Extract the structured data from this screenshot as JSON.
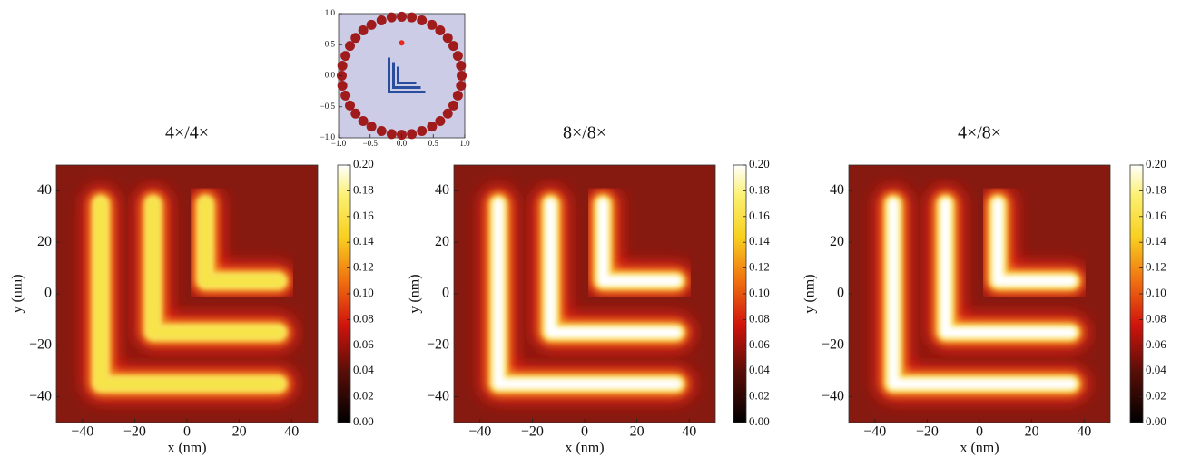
{
  "chart_data": [
    {
      "type": "scatter",
      "xlim": [
        -1,
        1
      ],
      "ylim": [
        -1,
        1
      ],
      "xticks": [
        {
          "value": -1,
          "label": "−1.0"
        },
        {
          "value": -0.5,
          "label": "−0.5"
        },
        {
          "value": 0,
          "label": "0.0"
        },
        {
          "value": 0.5,
          "label": "0.5"
        },
        {
          "value": 1,
          "label": "1.0"
        }
      ],
      "yticks": [
        {
          "value": -1,
          "label": "−1.0"
        },
        {
          "value": -0.5,
          "label": "−0.5"
        },
        {
          "value": 0,
          "label": "0.0"
        },
        {
          "value": 0.5,
          "label": "0.5"
        },
        {
          "value": 1,
          "label": "1.0"
        }
      ],
      "series": [
        {
          "color": "#a01c1c",
          "x": [
            0.95,
            0.94,
            0.89,
            0.82,
            0.73,
            0.61,
            0.48,
            0.32,
            0.16,
            0,
            -0.16,
            -0.32,
            -0.48,
            -0.61,
            -0.73,
            -0.82,
            -0.89,
            -0.94,
            -0.95,
            -0.94,
            -0.89,
            -0.82,
            -0.73,
            -0.61,
            -0.48,
            -0.32,
            -0.16,
            0,
            0.16,
            0.32,
            0.48,
            0.61,
            0.73,
            0.82,
            0.89,
            0.94
          ],
          "values": [
            0,
            0.16,
            0.32,
            0.48,
            0.61,
            0.73,
            0.82,
            0.89,
            0.94,
            0.95,
            0.94,
            0.89,
            0.82,
            0.73,
            0.61,
            0.48,
            0.32,
            0.16,
            0,
            -0.16,
            -0.32,
            -0.48,
            -0.61,
            -0.73,
            -0.82,
            -0.89,
            -0.94,
            -0.95,
            -0.94,
            -0.89,
            -0.82,
            -0.73,
            -0.61,
            -0.48,
            -0.32,
            -0.16
          ]
        },
        {
          "color": "#e8281e",
          "x": [
            0
          ],
          "values": [
            0.53
          ]
        }
      ]
    },
    {
      "type": "heatmap",
      "title": "4×/4×",
      "xlabel": "x (nm)",
      "ylabel": "y (nm)",
      "xlim": [
        -50,
        50
      ],
      "ylim": [
        -50,
        50
      ],
      "xticks": [
        {
          "value": -40,
          "label": "−40"
        },
        {
          "value": -20,
          "label": "−20"
        },
        0,
        20,
        40
      ],
      "yticks": [
        {
          "value": -40,
          "label": "−40"
        },
        {
          "value": -20,
          "label": "−20"
        },
        0,
        20,
        40
      ],
      "zlim": [
        0,
        0.2
      ],
      "zticks": [
        {
          "value": 0,
          "label": "0.00"
        },
        {
          "value": 0.02,
          "label": "0.02"
        },
        {
          "value": 0.04,
          "label": "0.04"
        },
        {
          "value": 0.06,
          "label": "0.06"
        },
        {
          "value": 0.08,
          "label": "0.08"
        },
        {
          "value": 0.1,
          "label": "0.10"
        },
        {
          "value": 0.12,
          "label": "0.12"
        },
        {
          "value": 0.14,
          "label": "0.14"
        },
        {
          "value": 0.16,
          "label": "0.16"
        },
        {
          "value": 0.18,
          "label": "0.18"
        },
        {
          "value": 0.2,
          "label": "0.20"
        }
      ]
    },
    {
      "type": "heatmap",
      "title": "8×/8×",
      "xlabel": "x (nm)",
      "ylabel": "y (nm)",
      "xlim": [
        -50,
        50
      ],
      "ylim": [
        -50,
        50
      ],
      "xticks": [
        {
          "value": -40,
          "label": "−40"
        },
        {
          "value": -20,
          "label": "−20"
        },
        0,
        20,
        40
      ],
      "yticks": [
        {
          "value": -40,
          "label": "−40"
        },
        {
          "value": -20,
          "label": "−20"
        },
        0,
        20,
        40
      ],
      "zlim": [
        0,
        0.2
      ],
      "zticks": [
        {
          "value": 0,
          "label": "0.00"
        },
        {
          "value": 0.02,
          "label": "0.02"
        },
        {
          "value": 0.04,
          "label": "0.04"
        },
        {
          "value": 0.06,
          "label": "0.06"
        },
        {
          "value": 0.08,
          "label": "0.08"
        },
        {
          "value": 0.1,
          "label": "0.10"
        },
        {
          "value": 0.12,
          "label": "0.12"
        },
        {
          "value": 0.14,
          "label": "0.14"
        },
        {
          "value": 0.16,
          "label": "0.16"
        },
        {
          "value": 0.18,
          "label": "0.18"
        },
        {
          "value": 0.2,
          "label": "0.20"
        }
      ]
    },
    {
      "type": "heatmap",
      "title": "4×/8×",
      "xlabel": "x (nm)",
      "ylabel": "y (nm)",
      "xlim": [
        -50,
        50
      ],
      "ylim": [
        -50,
        50
      ],
      "xticks": [
        {
          "value": -40,
          "label": "−40"
        },
        {
          "value": -20,
          "label": "−20"
        },
        0,
        20,
        40
      ],
      "yticks": [
        {
          "value": -40,
          "label": "−40"
        },
        {
          "value": -20,
          "label": "−20"
        },
        0,
        20,
        40
      ],
      "zlim": [
        0,
        0.2
      ],
      "zticks": [
        {
          "value": 0,
          "label": "0.00"
        },
        {
          "value": 0.02,
          "label": "0.02"
        },
        {
          "value": 0.04,
          "label": "0.04"
        },
        {
          "value": 0.06,
          "label": "0.06"
        },
        {
          "value": 0.08,
          "label": "0.08"
        },
        {
          "value": 0.1,
          "label": "0.10"
        },
        {
          "value": 0.12,
          "label": "0.12"
        },
        {
          "value": 0.14,
          "label": "0.14"
        },
        {
          "value": 0.16,
          "label": "0.16"
        },
        {
          "value": 0.18,
          "label": "0.18"
        },
        {
          "value": 0.2,
          "label": "0.20"
        }
      ]
    }
  ]
}
